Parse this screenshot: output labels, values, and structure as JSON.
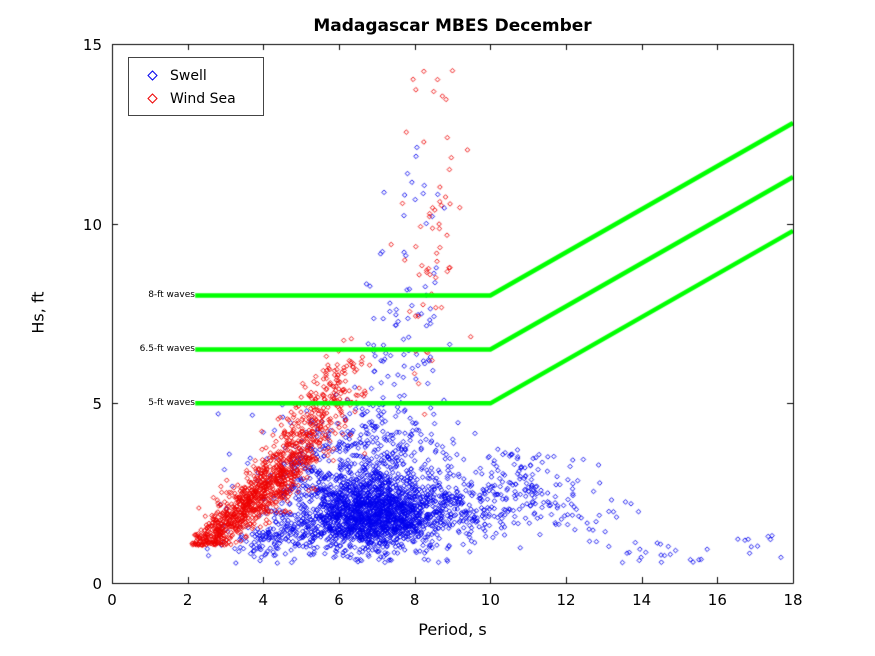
{
  "chart_data": {
    "type": "scatter",
    "title": "Madagascar MBES December",
    "xlabel": "Period, s",
    "ylabel": "Hs, ft",
    "xlim": [
      0,
      18
    ],
    "ylim": [
      0,
      15
    ],
    "xticks": [
      0,
      2,
      4,
      6,
      8,
      10,
      12,
      14,
      16,
      18
    ],
    "yticks": [
      0,
      5,
      10,
      15
    ],
    "grid": false,
    "legend": {
      "position": "top-left",
      "entries": [
        {
          "label": "Swell",
          "color": "#0000EE",
          "marker": "diamond"
        },
        {
          "label": "Wind Sea",
          "color": "#EE0000",
          "marker": "diamond"
        }
      ]
    },
    "series": [
      {
        "name": "Swell",
        "color": "#0000EE",
        "marker": "diamond",
        "clip": {
          "xmin": 2.4,
          "xmax": 17.9,
          "ymin": 0.55,
          "ymax": 12.6
        },
        "clusters": [
          {
            "n": 1400,
            "cx": 7.0,
            "cy": 1.9,
            "sx": 0.85,
            "sy": 0.5,
            "rho": 0.0
          },
          {
            "n": 500,
            "cx": 6.0,
            "cy": 2.7,
            "sx": 1.1,
            "sy": 0.8,
            "rho": 0.1
          },
          {
            "n": 180,
            "cx": 4.6,
            "cy": 1.3,
            "sx": 0.8,
            "sy": 0.3,
            "rho": 0.3
          },
          {
            "n": 200,
            "cx": 7.0,
            "cy": 3.8,
            "sx": 0.9,
            "sy": 0.8,
            "rho": 0.0
          },
          {
            "n": 260,
            "cx": 9.3,
            "cy": 2.2,
            "sx": 0.8,
            "sy": 0.6,
            "rho": 0.0
          },
          {
            "n": 90,
            "cx": 10.9,
            "cy": 2.8,
            "sx": 0.6,
            "sy": 0.6,
            "rho": -0.2
          },
          {
            "n": 45,
            "cx": 12.3,
            "cy": 2.1,
            "sx": 0.6,
            "sy": 0.45,
            "rho": 0.0
          },
          {
            "n": 70,
            "cx": 7.8,
            "cy": 7.0,
            "sx": 0.5,
            "sy": 1.6,
            "rho": 0.1
          },
          {
            "n": 12,
            "cx": 8.1,
            "cy": 11.0,
            "sx": 0.35,
            "sy": 0.9,
            "rho": 0.0
          },
          {
            "n": 22,
            "cx": 14.6,
            "cy": 0.85,
            "sx": 0.7,
            "sy": 0.18,
            "rho": 0.0
          },
          {
            "n": 10,
            "cx": 16.9,
            "cy": 1.15,
            "sx": 0.5,
            "sy": 0.2,
            "rho": 0.0
          }
        ]
      },
      {
        "name": "Wind Sea",
        "color": "#EE0000",
        "marker": "diamond",
        "clip": {
          "xmin": 2.1,
          "xmax": 9.6,
          "ymin": 1.05,
          "ymax": 14.4
        },
        "clusters": [
          {
            "n": 700,
            "cx": 3.6,
            "cy": 2.2,
            "sx": 0.75,
            "sy": 0.75,
            "rho": 0.85
          },
          {
            "n": 260,
            "cx": 4.8,
            "cy": 3.6,
            "sx": 0.55,
            "sy": 0.75,
            "rho": 0.6
          },
          {
            "n": 120,
            "cx": 5.6,
            "cy": 4.8,
            "sx": 0.45,
            "sy": 0.7,
            "rho": 0.4
          },
          {
            "n": 50,
            "cx": 6.1,
            "cy": 5.6,
            "sx": 0.35,
            "sy": 0.5,
            "rho": 0.2
          },
          {
            "n": 60,
            "cx": 2.6,
            "cy": 1.35,
            "sx": 0.3,
            "sy": 0.15,
            "rho": 0.5
          },
          {
            "n": 55,
            "cx": 8.5,
            "cy": 9.0,
            "sx": 0.45,
            "sy": 1.9,
            "rho": 0.1
          },
          {
            "n": 8,
            "cx": 8.6,
            "cy": 13.6,
            "sx": 0.35,
            "sy": 0.5,
            "rho": 0.0
          }
        ]
      }
    ],
    "threshold_lines": [
      {
        "label": "8-ft waves",
        "color": "#00FF00",
        "width": 4.5,
        "points": [
          [
            2.2,
            8.0
          ],
          [
            10,
            8.0
          ],
          [
            18,
            12.8
          ]
        ]
      },
      {
        "label": "6.5-ft waves",
        "color": "#00FF00",
        "width": 4.5,
        "points": [
          [
            2.2,
            6.5
          ],
          [
            10,
            6.5
          ],
          [
            18,
            11.3
          ]
        ]
      },
      {
        "label": "5-ft waves",
        "color": "#00FF00",
        "width": 4.5,
        "points": [
          [
            2.2,
            5.0
          ],
          [
            10,
            5.0
          ],
          [
            18,
            9.8
          ]
        ]
      }
    ]
  }
}
